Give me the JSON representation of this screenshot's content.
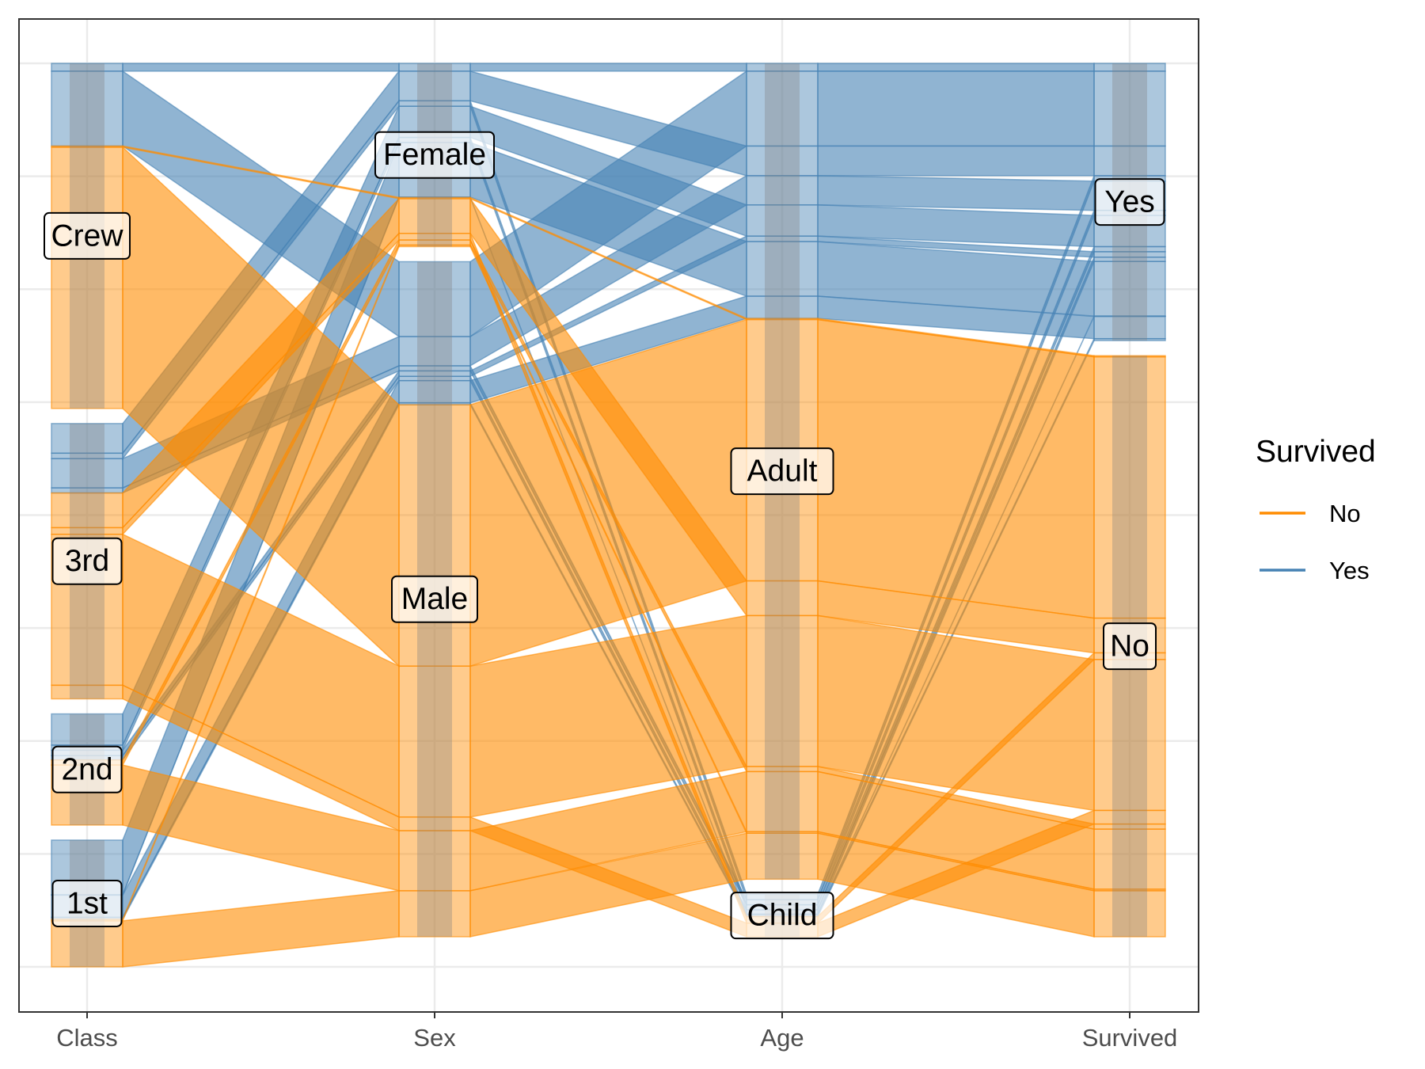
{
  "chart_data": {
    "type": "alluvial",
    "title": "",
    "axes": [
      "Class",
      "Sex",
      "Age",
      "Survived"
    ],
    "strata": {
      "Class": [
        "Crew",
        "3rd",
        "2nd",
        "1st"
      ],
      "Sex": [
        "Female",
        "Male"
      ],
      "Age": [
        "Adult",
        "Child"
      ],
      "Survived": [
        "Yes",
        "No"
      ]
    },
    "fill": "Survived",
    "legend": {
      "title": "Survived",
      "position": "right",
      "entries": [
        {
          "label": "No",
          "color": "#FF8C00"
        },
        {
          "label": "Yes",
          "color": "#4682B4"
        }
      ]
    },
    "flows": [
      {
        "Class": "Crew",
        "Sex": "Female",
        "Age": "Adult",
        "Survived": "Yes",
        "count": 20
      },
      {
        "Class": "Crew",
        "Sex": "Male",
        "Age": "Adult",
        "Survived": "Yes",
        "count": 192
      },
      {
        "Class": "3rd",
        "Sex": "Female",
        "Age": "Adult",
        "Survived": "Yes",
        "count": 76
      },
      {
        "Class": "3rd",
        "Sex": "Female",
        "Age": "Child",
        "Survived": "Yes",
        "count": 14
      },
      {
        "Class": "3rd",
        "Sex": "Male",
        "Age": "Adult",
        "Survived": "Yes",
        "count": 75
      },
      {
        "Class": "3rd",
        "Sex": "Male",
        "Age": "Child",
        "Survived": "Yes",
        "count": 13
      },
      {
        "Class": "2nd",
        "Sex": "Female",
        "Age": "Adult",
        "Survived": "Yes",
        "count": 80
      },
      {
        "Class": "2nd",
        "Sex": "Female",
        "Age": "Child",
        "Survived": "Yes",
        "count": 13
      },
      {
        "Class": "2nd",
        "Sex": "Male",
        "Age": "Adult",
        "Survived": "Yes",
        "count": 14
      },
      {
        "Class": "2nd",
        "Sex": "Male",
        "Age": "Child",
        "Survived": "Yes",
        "count": 11
      },
      {
        "Class": "1st",
        "Sex": "Female",
        "Age": "Adult",
        "Survived": "Yes",
        "count": 140
      },
      {
        "Class": "1st",
        "Sex": "Female",
        "Age": "Child",
        "Survived": "Yes",
        "count": 1
      },
      {
        "Class": "1st",
        "Sex": "Male",
        "Age": "Adult",
        "Survived": "Yes",
        "count": 57
      },
      {
        "Class": "1st",
        "Sex": "Male",
        "Age": "Child",
        "Survived": "Yes",
        "count": 5
      },
      {
        "Class": "Crew",
        "Sex": "Female",
        "Age": "Adult",
        "Survived": "No",
        "count": 3
      },
      {
        "Class": "Crew",
        "Sex": "Male",
        "Age": "Adult",
        "Survived": "No",
        "count": 670
      },
      {
        "Class": "3rd",
        "Sex": "Female",
        "Age": "Adult",
        "Survived": "No",
        "count": 89
      },
      {
        "Class": "3rd",
        "Sex": "Female",
        "Age": "Child",
        "Survived": "No",
        "count": 17
      },
      {
        "Class": "3rd",
        "Sex": "Male",
        "Age": "Adult",
        "Survived": "No",
        "count": 387
      },
      {
        "Class": "3rd",
        "Sex": "Male",
        "Age": "Child",
        "Survived": "No",
        "count": 35
      },
      {
        "Class": "2nd",
        "Sex": "Female",
        "Age": "Adult",
        "Survived": "No",
        "count": 13
      },
      {
        "Class": "2nd",
        "Sex": "Male",
        "Age": "Adult",
        "Survived": "No",
        "count": 154
      },
      {
        "Class": "1st",
        "Sex": "Female",
        "Age": "Adult",
        "Survived": "No",
        "count": 4
      },
      {
        "Class": "1st",
        "Sex": "Male",
        "Age": "Adult",
        "Survived": "No",
        "count": 118
      }
    ]
  }
}
